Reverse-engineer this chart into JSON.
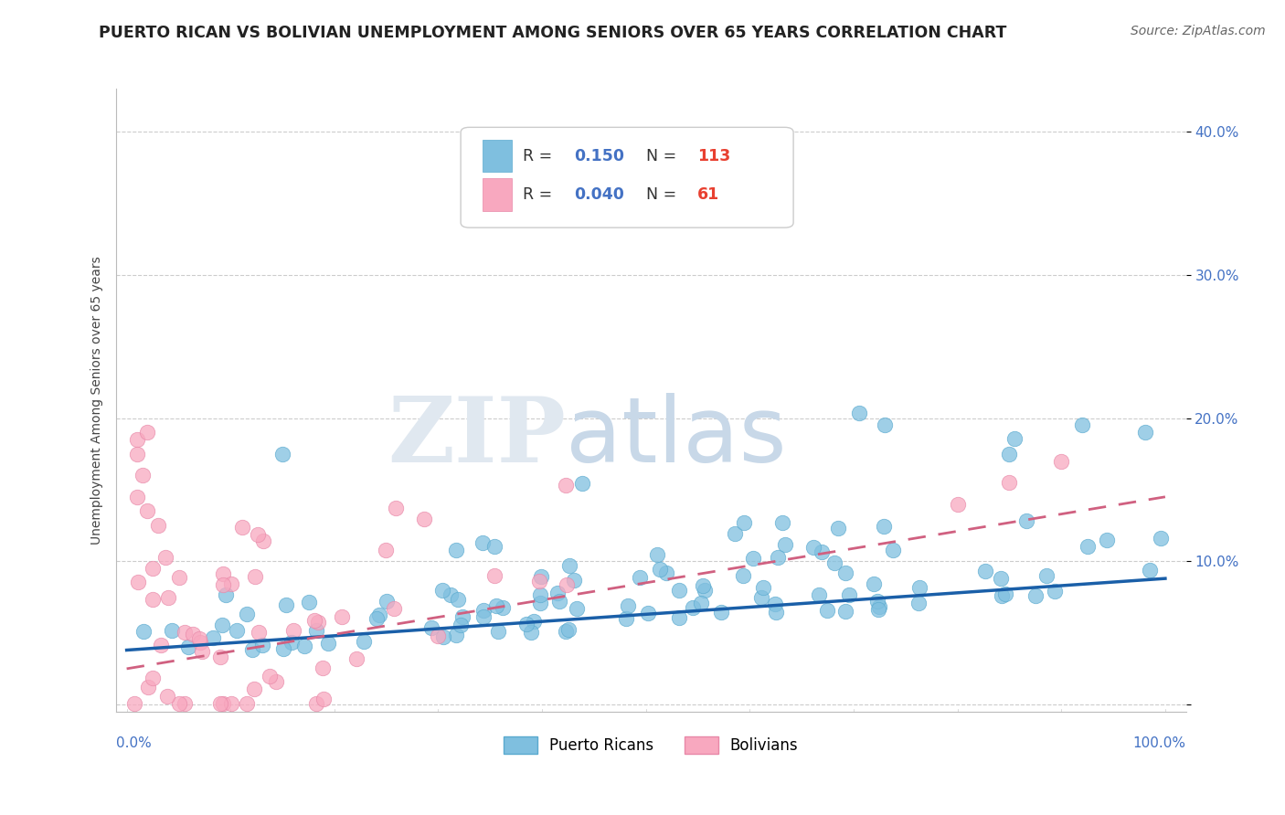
{
  "title": "PUERTO RICAN VS BOLIVIAN UNEMPLOYMENT AMONG SENIORS OVER 65 YEARS CORRELATION CHART",
  "source": "Source: ZipAtlas.com",
  "ylabel": "Unemployment Among Seniors over 65 years",
  "ytick_values": [
    0.0,
    0.1,
    0.2,
    0.3,
    0.4
  ],
  "ytick_labels": [
    "",
    "10.0%",
    "20.0%",
    "30.0%",
    "40.0%"
  ],
  "xlim": [
    0.0,
    1.0
  ],
  "ylim": [
    0.0,
    0.42
  ],
  "r_puerto_rican": 0.15,
  "n_puerto_rican": 113,
  "r_bolivian": 0.04,
  "n_bolivian": 61,
  "blue_color": "#7fbfdf",
  "blue_edge": "#5aaacf",
  "pink_color": "#f8a8bf",
  "pink_edge": "#e888a8",
  "blue_line_color": "#1a5fa8",
  "pink_line_color": "#d06080",
  "r_n_blue": "#4472c4",
  "r_n_red": "#e84030",
  "watermark_color": "#e0e8f0",
  "title_fontsize": 12.5,
  "source_fontsize": 10,
  "ytick_fontsize": 11,
  "ylabel_fontsize": 10,
  "legend_fontsize": 12
}
